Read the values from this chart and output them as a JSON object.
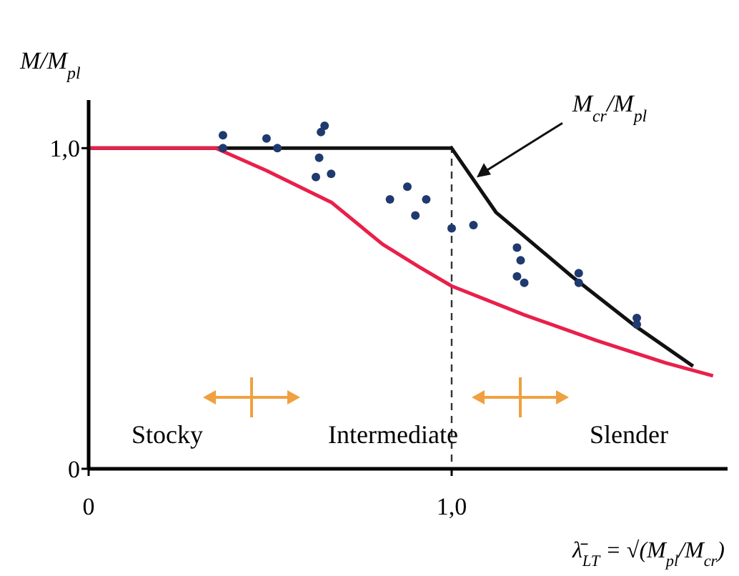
{
  "chart_data": {
    "type": "line",
    "xlabel": "λ̄$_{LT}$ = √(M$_{pl}$/M$_{cr}$)",
    "ylabel": "M/M$_{pl}$",
    "xlim": [
      0,
      1.76
    ],
    "ylim": [
      0,
      1.15
    ],
    "xticks": [
      {
        "value": 0,
        "label": "0"
      },
      {
        "value": 1,
        "label": "1,0"
      }
    ],
    "yticks": [
      {
        "value": 0,
        "label": "0"
      },
      {
        "value": 1,
        "label": "1,0"
      }
    ],
    "grid": false,
    "ref_lines": [
      {
        "axis": "x",
        "value": 1,
        "color": "#333333",
        "line_style": "dashed"
      }
    ],
    "annotations": [
      "Stocky",
      "Intermediate",
      "Slender"
    ],
    "series": [
      {
        "name": "M$_{cr}$/M$_{pl}$",
        "color": "#111111",
        "x": [
          0,
          1.0,
          1.122,
          1.331,
          1.5,
          1.665
        ],
        "values": [
          1.0,
          1.0,
          0.8,
          0.6,
          0.45,
          0.32
        ]
      },
      {
        "color": "#e8204a",
        "x": [
          0,
          0.35,
          0.49,
          0.67,
          0.81,
          0.91,
          1.0,
          1.2,
          1.4,
          1.59,
          1.72
        ],
        "values": [
          1.0,
          1.0,
          0.93,
          0.83,
          0.7,
          0.63,
          0.57,
          0.48,
          0.4,
          0.33,
          0.29
        ]
      },
      {
        "type": "scatter",
        "color": "#1f3a6e",
        "marker": "circle",
        "x": [
          0.37,
          0.37,
          0.49,
          0.52,
          0.65,
          0.64,
          0.635,
          0.626,
          0.668,
          0.83,
          0.878,
          0.93,
          0.9,
          1.0,
          1.06,
          1.18,
          1.19,
          1.18,
          1.2,
          1.35,
          1.35,
          1.51,
          1.51
        ],
        "values": [
          1.04,
          1.0,
          1.03,
          1.0,
          1.07,
          1.05,
          0.97,
          0.91,
          0.92,
          0.84,
          0.88,
          0.84,
          0.79,
          0.75,
          0.76,
          0.69,
          0.65,
          0.6,
          0.58,
          0.61,
          0.58,
          0.47,
          0.45
        ]
      }
    ]
  }
}
